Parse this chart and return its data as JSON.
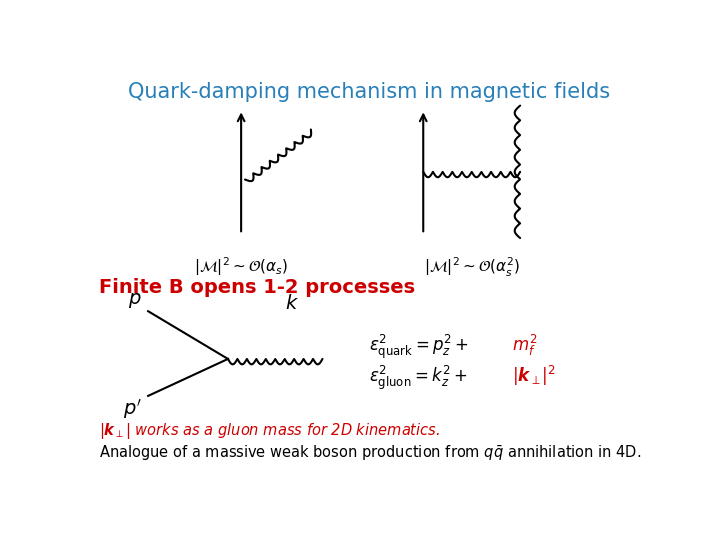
{
  "title": "Quark-damping mechanism in magnetic fields",
  "title_color": "#2980B9",
  "title_fontsize": 15,
  "bg_color": "#ffffff",
  "subtitle": "Finite B opens 1-2 processes",
  "subtitle_color": "#cc0000",
  "subtitle_fontsize": 14,
  "eq1": "$|\\mathcal{M}|^2 \\sim \\mathcal{O}(\\alpha_s)$",
  "eq2": "$|\\mathcal{M}|^2 \\sim \\mathcal{O}(\\alpha_s^2)$",
  "note1_color": "#cc0000",
  "note2_color": "black"
}
